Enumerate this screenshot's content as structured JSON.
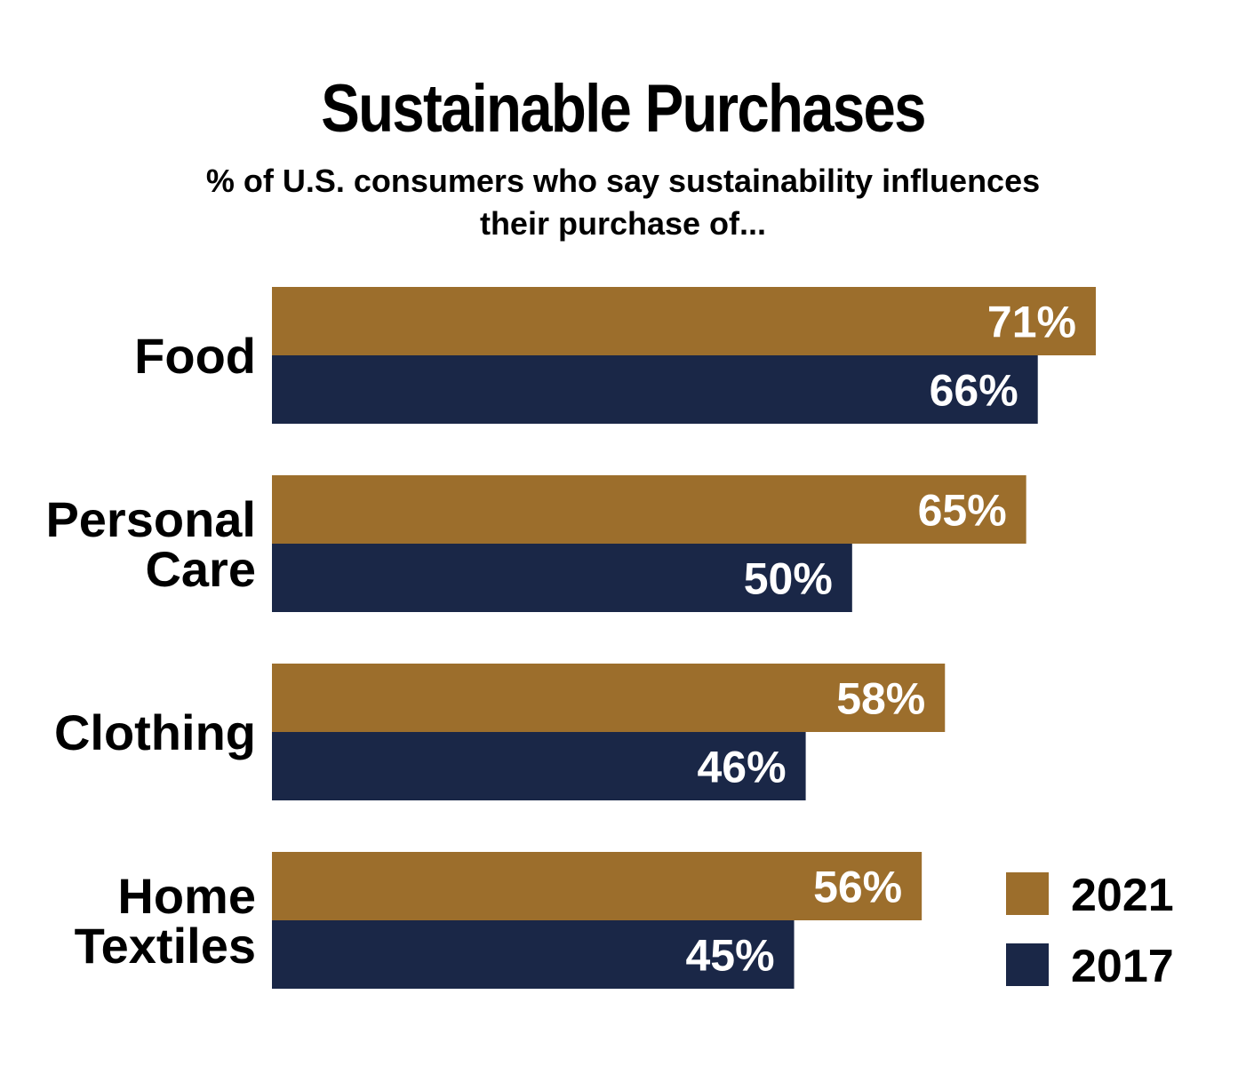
{
  "chart_data": {
    "type": "bar",
    "orientation": "horizontal",
    "title": "Sustainable Purchases",
    "subtitle": [
      "% of U.S. consumers who say sustainability influences",
      "their purchase of..."
    ],
    "categories": [
      [
        "Food"
      ],
      [
        "Personal",
        "Care"
      ],
      [
        "Clothing"
      ],
      [
        "Home",
        "Textiles"
      ]
    ],
    "series": [
      {
        "name": "2021",
        "values": [
          71,
          65,
          58,
          56
        ],
        "labels": [
          "71%",
          "65%",
          "58%",
          "56%"
        ],
        "color": "#9c6e2c"
      },
      {
        "name": "2017",
        "values": [
          66,
          50,
          46,
          45
        ],
        "labels": [
          "66%",
          "50%",
          "46%",
          "45%"
        ],
        "color": "#1a2747"
      }
    ],
    "xlabel": "",
    "ylabel": "",
    "grid": false,
    "legend": "bottom-right"
  }
}
